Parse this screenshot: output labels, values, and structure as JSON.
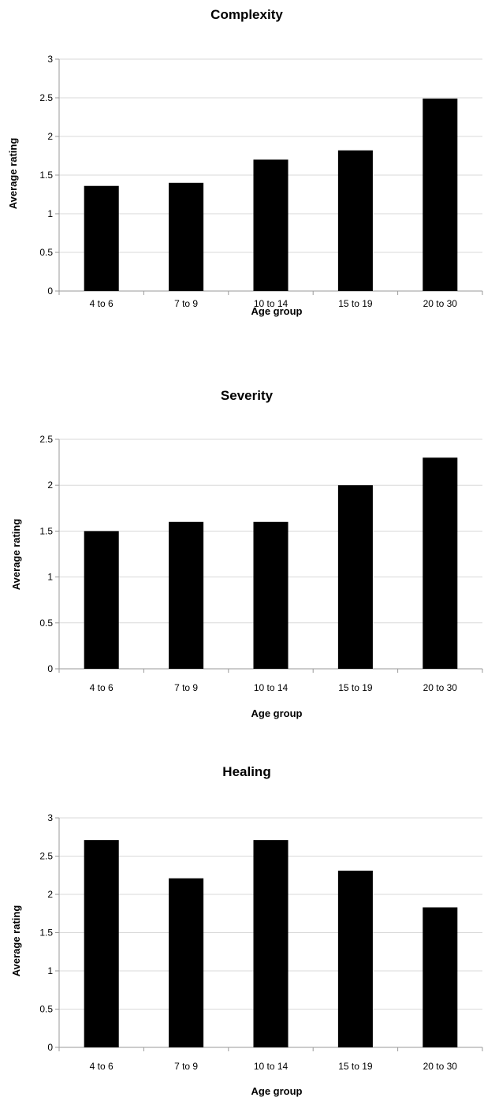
{
  "colors": {
    "bar": "#000000",
    "grid": "#d9d9d9",
    "axis": "#9a9a9a",
    "background": "#ffffff"
  },
  "chart_data": [
    {
      "type": "bar",
      "title": "Complexity",
      "xlabel": "Age group",
      "ylabel": "Average rating",
      "categories": [
        "4 to 6",
        "7 to 9",
        "10 to 14",
        "15 to 19",
        "20 to 30"
      ],
      "values": [
        1.36,
        1.4,
        1.7,
        1.82,
        2.49
      ],
      "ylim": [
        0,
        3
      ],
      "yticks": [
        0,
        0.5,
        1,
        1.5,
        2,
        2.5,
        3
      ],
      "ytick_labels": [
        "0",
        "0.5",
        "1",
        "1.5",
        "2",
        "2.5",
        "3"
      ],
      "grid": true
    },
    {
      "type": "bar",
      "title": "Severity",
      "xlabel": "Age group",
      "ylabel": "Average rating",
      "categories": [
        "4 to 6",
        "7 to 9",
        "10 to 14",
        "15 to 19",
        "20 to 30"
      ],
      "values": [
        1.5,
        1.6,
        1.6,
        2.0,
        2.3
      ],
      "ylim": [
        0,
        2.5
      ],
      "yticks": [
        0,
        0.5,
        1,
        1.5,
        2,
        2.5
      ],
      "ytick_labels": [
        "0",
        "0.5",
        "1",
        "1.5",
        "2",
        "2.5"
      ],
      "grid": true
    },
    {
      "type": "bar",
      "title": "Healing",
      "xlabel": "Age group",
      "ylabel": "Average rating",
      "categories": [
        "4 to 6",
        "7 to 9",
        "10 to 14",
        "15 to 19",
        "20 to 30"
      ],
      "values": [
        2.71,
        2.21,
        2.71,
        2.31,
        1.83
      ],
      "ylim": [
        0,
        3
      ],
      "yticks": [
        0,
        0.5,
        1,
        1.5,
        2,
        2.5,
        3
      ],
      "ytick_labels": [
        "0",
        "0.5",
        "1",
        "1.5",
        "2",
        "2.5",
        "3"
      ],
      "grid": true
    }
  ]
}
